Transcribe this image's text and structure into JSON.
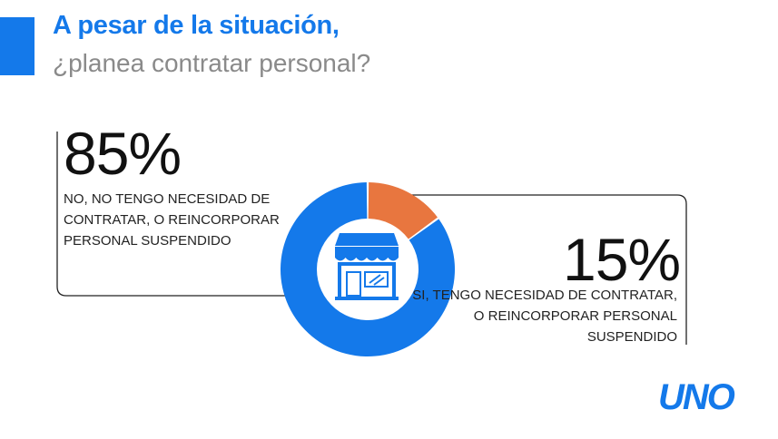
{
  "header": {
    "title": "A pesar de la situación,",
    "subtitle": "¿planea contratar personal?"
  },
  "brand": {
    "logo_text": "UNO"
  },
  "colors": {
    "accent": "#1479ea",
    "no": "#1479ea",
    "si": "#e8763f",
    "icon": "#1479ea"
  },
  "icon": {
    "name": "storefront-icon"
  },
  "chart_data": {
    "type": "pie",
    "donut": true,
    "categories": [
      "NO, NO TENGO NECESIDAD DE CONTRATAR, O REINCORPORAR PERSONAL SUSPENDIDO",
      "SI, TENGO NECESIDAD DE CONTRATAR, O REINCORPORAR PERSONAL SUSPENDIDO"
    ],
    "values": [
      85,
      15
    ],
    "labels": [
      "85%",
      "15%"
    ]
  }
}
